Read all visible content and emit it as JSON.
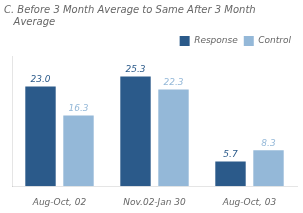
{
  "chart_data": {
    "type": "bar",
    "title": "C. Before 3 Month Average to Same After 3 Month\n   Average",
    "categories": [
      "Aug-Oct, 02",
      "Nov.02-Jan 30",
      "Aug-Oct, 03"
    ],
    "series": [
      {
        "name": "Response",
        "color": "#2B5A8A",
        "values": [
          23.0,
          25.3,
          5.7
        ],
        "value_labels": [
          "23.0",
          "25.3",
          "5.7"
        ]
      },
      {
        "name": "Control",
        "color": "#94B8D8",
        "values": [
          16.3,
          22.3,
          8.3
        ],
        "value_labels": [
          "16.3",
          "22.3",
          "8.3"
        ]
      }
    ],
    "ylim": [
      0,
      30
    ],
    "grid": false,
    "legend": "upper right",
    "data_labels": true,
    "tick_labels": "x"
  }
}
